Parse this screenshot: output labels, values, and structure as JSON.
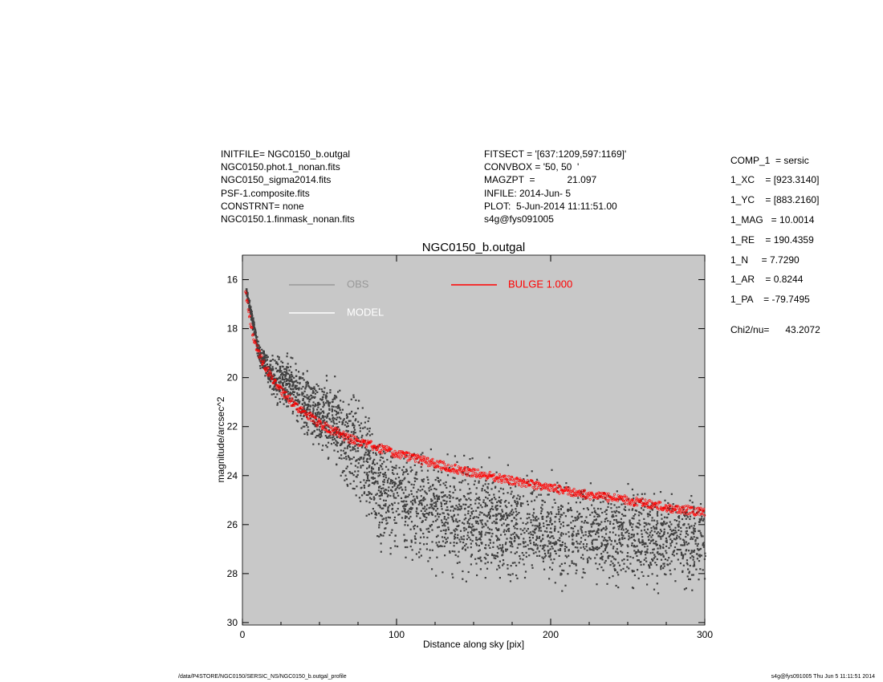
{
  "header_left": [
    "INITFILE= NGC0150_b.outgal",
    "NGC0150.phot.1_nonan.fits",
    "NGC0150_sigma2014.fits",
    "PSF-1.composite.fits",
    "CONSTRNT= none",
    "NGC0150.1.finmask_nonan.fits"
  ],
  "header_mid": [
    "FITSECT = '[637:1209,597:1169]'",
    "CONVBOX = '50, 50  '",
    "MAGZPT  =            21.097",
    "INFILE: 2014-Jun- 5",
    "PLOT:  5-Jun-2014 11:11:51.00",
    "s4g@fys091005"
  ],
  "params": [
    "COMP_1  = sersic",
    "1_XC    = [923.3140]",
    "1_YC    = [883.2160]",
    "1_MAG   = 10.0014",
    "1_RE    = 190.4359",
    "1_N     = 7.7290",
    "1_AR    = 0.8244",
    "1_PA    = -79.7495"
  ],
  "chi2": "Chi2/nu=      43.2072",
  "footer_left": "/data/P4STORE/NGC0150/SERSIC_NS/NGC0150_b.outgal_profile",
  "footer_right": "s4g@fys091005  Thu Jun  5 11:11:51 2014",
  "chart_data": {
    "type": "scatter",
    "title": "NGC0150_b.outgal",
    "xlabel": "Distance along sky [pix]",
    "ylabel": "magnitude/arcsec^2",
    "xlim": [
      0,
      300
    ],
    "ylim": [
      30.1,
      15.0
    ],
    "xticks": [
      "0",
      "100",
      "200",
      "300"
    ],
    "xtick_values": [
      0,
      100,
      200,
      300
    ],
    "yticks": [
      "16",
      "18",
      "20",
      "22",
      "24",
      "26",
      "28",
      "30"
    ],
    "ytick_values": [
      16,
      18,
      20,
      22,
      24,
      26,
      28,
      30
    ],
    "background": "#c8c8c8",
    "legend": [
      {
        "label": "OBS",
        "color": "#999999"
      },
      {
        "label": "BULGE  1.000",
        "color": "#ff0000"
      },
      {
        "label": "MODEL",
        "color": "#ffffff"
      }
    ],
    "model": {
      "x": [
        2,
        4,
        7,
        10,
        15,
        20,
        25,
        35,
        50,
        70,
        100,
        130,
        150,
        175,
        200,
        225,
        250,
        275,
        300
      ],
      "y": [
        16.4,
        17.4,
        18.3,
        18.9,
        19.6,
        20.1,
        20.5,
        21.2,
        21.9,
        22.5,
        23.1,
        23.6,
        23.9,
        24.2,
        24.5,
        24.8,
        25.0,
        25.3,
        25.5
      ],
      "band_width": 0.35,
      "color": "#ff0000"
    },
    "obs_envelope": {
      "x": [
        2,
        10,
        20,
        30,
        45,
        60,
        75,
        90,
        110,
        150,
        200,
        250,
        300
      ],
      "center": [
        16.4,
        18.9,
        20.0,
        20.2,
        21.3,
        21.8,
        23.0,
        24.6,
        25.2,
        25.8,
        26.3,
        26.5,
        26.6
      ],
      "spread": [
        0.1,
        0.3,
        0.6,
        0.8,
        1.0,
        1.2,
        1.5,
        1.5,
        1.6,
        1.5,
        1.4,
        1.3,
        1.3
      ],
      "color": "#404040"
    }
  }
}
